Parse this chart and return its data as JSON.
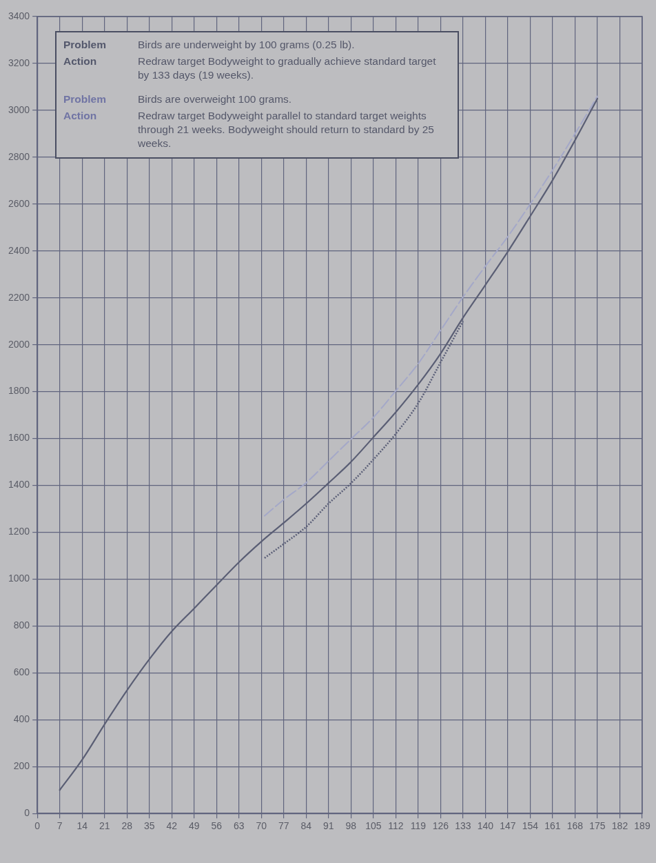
{
  "chart_data": {
    "type": "line",
    "xlim": [
      0,
      189
    ],
    "xticks": [
      0,
      7,
      14,
      21,
      28,
      35,
      42,
      49,
      56,
      63,
      70,
      77,
      84,
      91,
      98,
      105,
      112,
      119,
      126,
      133,
      140,
      147,
      154,
      161,
      168,
      175,
      182,
      189
    ],
    "ylim": [
      0,
      3400
    ],
    "yticks": [
      0,
      200,
      400,
      600,
      800,
      1000,
      1200,
      1400,
      1600,
      1800,
      2000,
      2200,
      2400,
      2600,
      2800,
      3000,
      3200,
      3400
    ],
    "grid": true,
    "legend": false,
    "marker": "none",
    "series": [
      {
        "color": "#5a5e74",
        "line_style": "solid",
        "x": [
          7,
          14,
          21,
          28,
          35,
          42,
          49,
          56,
          63,
          70,
          77,
          84,
          91,
          98,
          105,
          112,
          119,
          126,
          133,
          140,
          147,
          154,
          161,
          168,
          175
        ],
        "values": [
          100,
          229,
          380,
          525,
          658,
          777,
          875,
          974,
          1072,
          1160,
          1240,
          1322,
          1410,
          1500,
          1605,
          1712,
          1830,
          1962,
          2115,
          2255,
          2397,
          2548,
          2702,
          2872,
          3050
        ]
      },
      {
        "color": "#5c6078",
        "line_style": "dotted",
        "x": [
          71,
          77,
          84,
          91,
          98,
          105,
          112,
          119,
          126,
          133
        ],
        "values": [
          1090,
          1150,
          1223,
          1322,
          1409,
          1510,
          1620,
          1750,
          1925,
          2100
        ]
      },
      {
        "color": "#a4a8c8",
        "line_style": "dashed",
        "x": [
          71,
          77,
          84,
          91,
          98,
          105,
          112,
          119,
          126,
          133,
          140,
          147,
          154,
          161,
          168,
          175
        ],
        "values": [
          1270,
          1339,
          1411,
          1504,
          1597,
          1690,
          1803,
          1919,
          2061,
          2203,
          2335,
          2461,
          2600,
          2745,
          2900,
          3060
        ]
      }
    ],
    "annotations": [
      "Problem",
      "Birds are underweight by 100 grams (0.25 lb).",
      "Action",
      "Redraw target Bodyweight to gradually achieve standard target by 133 days (19 weeks).",
      "Problem",
      "Birds are overweight 100 grams.",
      "Action",
      "Redraw target Bodyweight parallel to standard target weights through 21 weeks. Bodyweight should return to standard by 25 weeks."
    ]
  }
}
